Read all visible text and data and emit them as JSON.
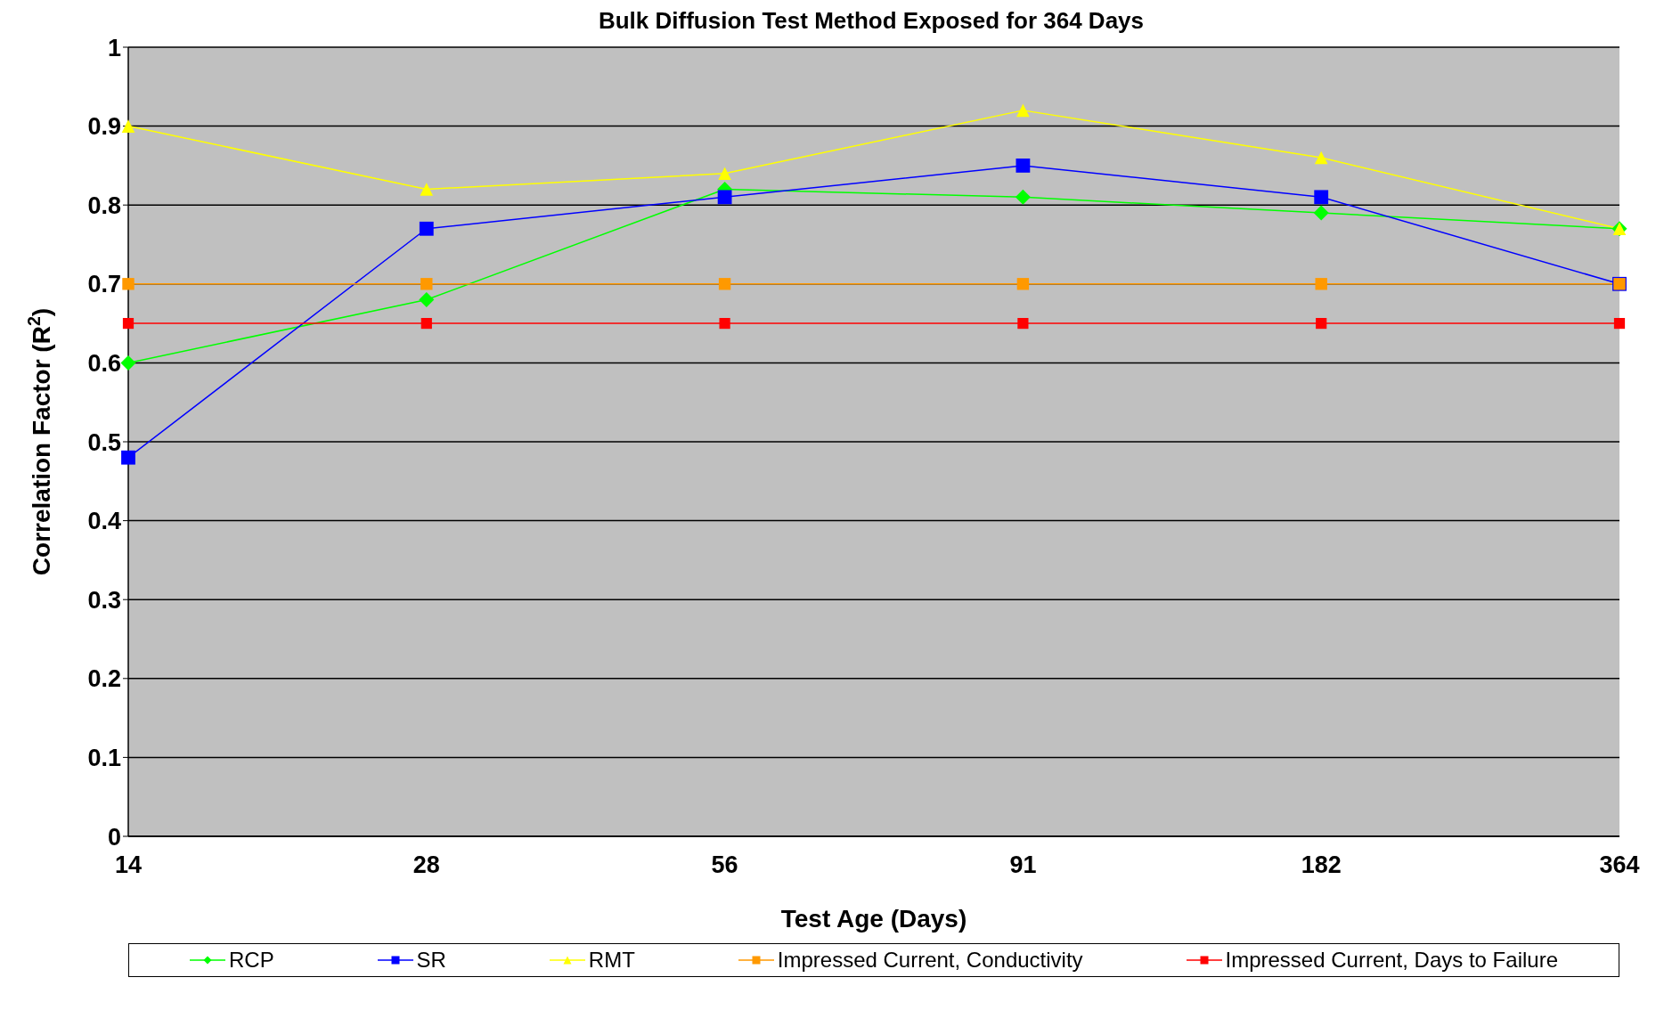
{
  "chart_data": {
    "type": "line",
    "title": "Bulk Diffusion Test Method Exposed for 364 Days",
    "xlabel": "Test Age (Days)",
    "ylabel": "Correlation Factor (R$^{2}$)",
    "categories": [
      "14",
      "28",
      "56",
      "91",
      "182",
      "364"
    ],
    "series": [
      {
        "name": "RCP",
        "color": "#00ff00",
        "marker": "diamond",
        "values": [
          0.6,
          0.68,
          0.82,
          0.81,
          0.79,
          0.77
        ]
      },
      {
        "name": "SR",
        "color": "#0000ff",
        "marker": "square",
        "values": [
          0.48,
          0.77,
          0.81,
          0.85,
          0.81,
          0.7
        ]
      },
      {
        "name": "RMT",
        "color": "#ffff00",
        "marker": "triangle",
        "values": [
          0.9,
          0.82,
          0.84,
          0.92,
          0.86,
          0.77
        ]
      },
      {
        "name": "Impressed Current, Conductivity",
        "color": "#ff9900",
        "marker": "square",
        "values": [
          0.7,
          0.7,
          0.7,
          0.7,
          0.7,
          0.7
        ]
      },
      {
        "name": "Impressed Current, Days to Failure",
        "color": "#ff0000",
        "marker": "square",
        "values": [
          0.65,
          0.65,
          0.65,
          0.65,
          0.65,
          0.65
        ]
      }
    ],
    "ylim": [
      0,
      1
    ],
    "yticks": [
      0,
      0.1,
      0.2,
      0.3,
      0.4,
      0.5,
      0.6,
      0.7,
      0.8,
      0.9,
      1
    ],
    "grid": "y",
    "legend": "bottom"
  }
}
